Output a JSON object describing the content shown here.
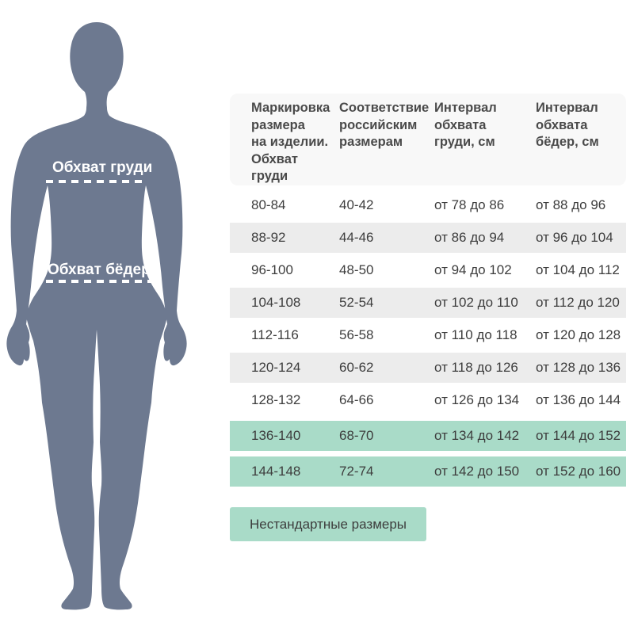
{
  "chart_data": {
    "type": "table",
    "columns": [
      "Маркировка размера на изделии. Обхват груди",
      "Соответствие российским размерам",
      "Интервал обхвата груди, см",
      "Интервал обхвата бёдер, см"
    ],
    "rows": [
      [
        "80-84",
        "40-42",
        "от 78 до 86",
        "от 88 до 96"
      ],
      [
        "88-92",
        "44-46",
        "от 86 до 94",
        "от 96 до 104"
      ],
      [
        "96-100",
        "48-50",
        "от 94 до 102",
        "от 104 до 112"
      ],
      [
        "104-108",
        "52-54",
        "от 102 до 110",
        "от 112 до 120"
      ],
      [
        "112-116",
        "56-58",
        "от 110 до 118",
        "от 120 до 128"
      ],
      [
        "120-124",
        "60-62",
        "от 118 до 126",
        "от 128 до 136"
      ],
      [
        "128-132",
        "64-66",
        "от 126 до 134",
        "от 136 до 144"
      ],
      [
        "136-140",
        "68-70",
        "от 134 до 142",
        "от 144 до 152"
      ],
      [
        "144-148",
        "72-74",
        "от 142 до 150",
        "от 152 до 160"
      ]
    ],
    "highlighted_rows": [
      7,
      8
    ],
    "footer_badge": "Нестандартные размеры",
    "figure_annotations": [
      "Обхват груди",
      "Обхват бёдер"
    ],
    "legend_position": "none",
    "grid": false
  },
  "presentation": {
    "header_lines": [
      "Маркировка\nразмера\nна изделии.\nОбхват\nгруди",
      "Соответствие\nроссийским\nразмерам",
      "Интервал\nобхвата\nгруди, см",
      "Интервал\nобхвата\nбёдер, см"
    ]
  },
  "figure": {
    "chest_label": "Обхват груди",
    "hips_label": "Обхват бёдер"
  },
  "badge": {
    "label": "Нестандартные размеры"
  },
  "colors": {
    "silhouette": "#6d7990",
    "highlight_green": "#a9dbc8",
    "row_alt_gray": "#ececec",
    "header_bg": "#f8f8f8",
    "text_dark": "#3d3d3d",
    "header_text": "#4a4a4a",
    "label_white": "#ffffff"
  }
}
